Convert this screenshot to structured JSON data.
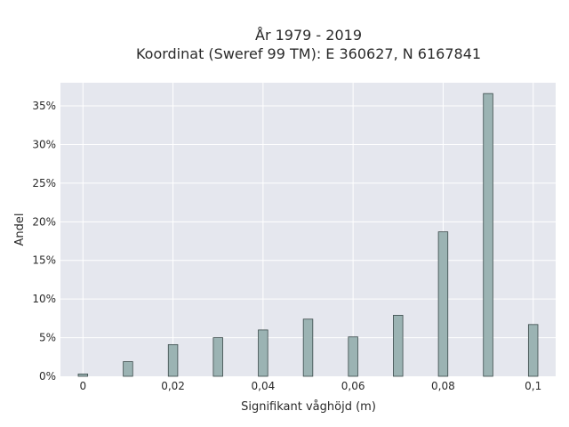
{
  "chart_data": {
    "type": "bar",
    "title_line1": "År 1979 - 2019",
    "title_line2": "Koordinat (Sweref 99 TM): E 360627, N 6167841",
    "xlabel": "Signifikant våghöjd (m)",
    "ylabel": "Andel",
    "x": [
      0,
      0.01,
      0.02,
      0.03,
      0.04,
      0.05,
      0.06,
      0.07,
      0.08,
      0.09,
      0.1
    ],
    "values": [
      0.3,
      1.9,
      4.1,
      5.0,
      6.0,
      7.4,
      5.1,
      7.9,
      18.7,
      36.6,
      6.7
    ],
    "xlim": [
      -0.005,
      0.105
    ],
    "ylim": [
      0,
      38
    ],
    "x_ticks": [
      0,
      0.02,
      0.04,
      0.06,
      0.08,
      0.1
    ],
    "x_tick_labels": [
      "0",
      "0,02",
      "0,04",
      "0,06",
      "0,08",
      "0,1"
    ],
    "y_ticks": [
      0,
      5,
      10,
      15,
      20,
      25,
      30,
      35
    ],
    "y_tick_labels": [
      "0%",
      "5%",
      "10%",
      "15%",
      "20%",
      "25%",
      "30%",
      "35%"
    ],
    "bar_color": "#9bb3b3",
    "bar_edge_color": "#3b4a4a",
    "plot_bg": "#e5e7ee",
    "grid": true
  }
}
